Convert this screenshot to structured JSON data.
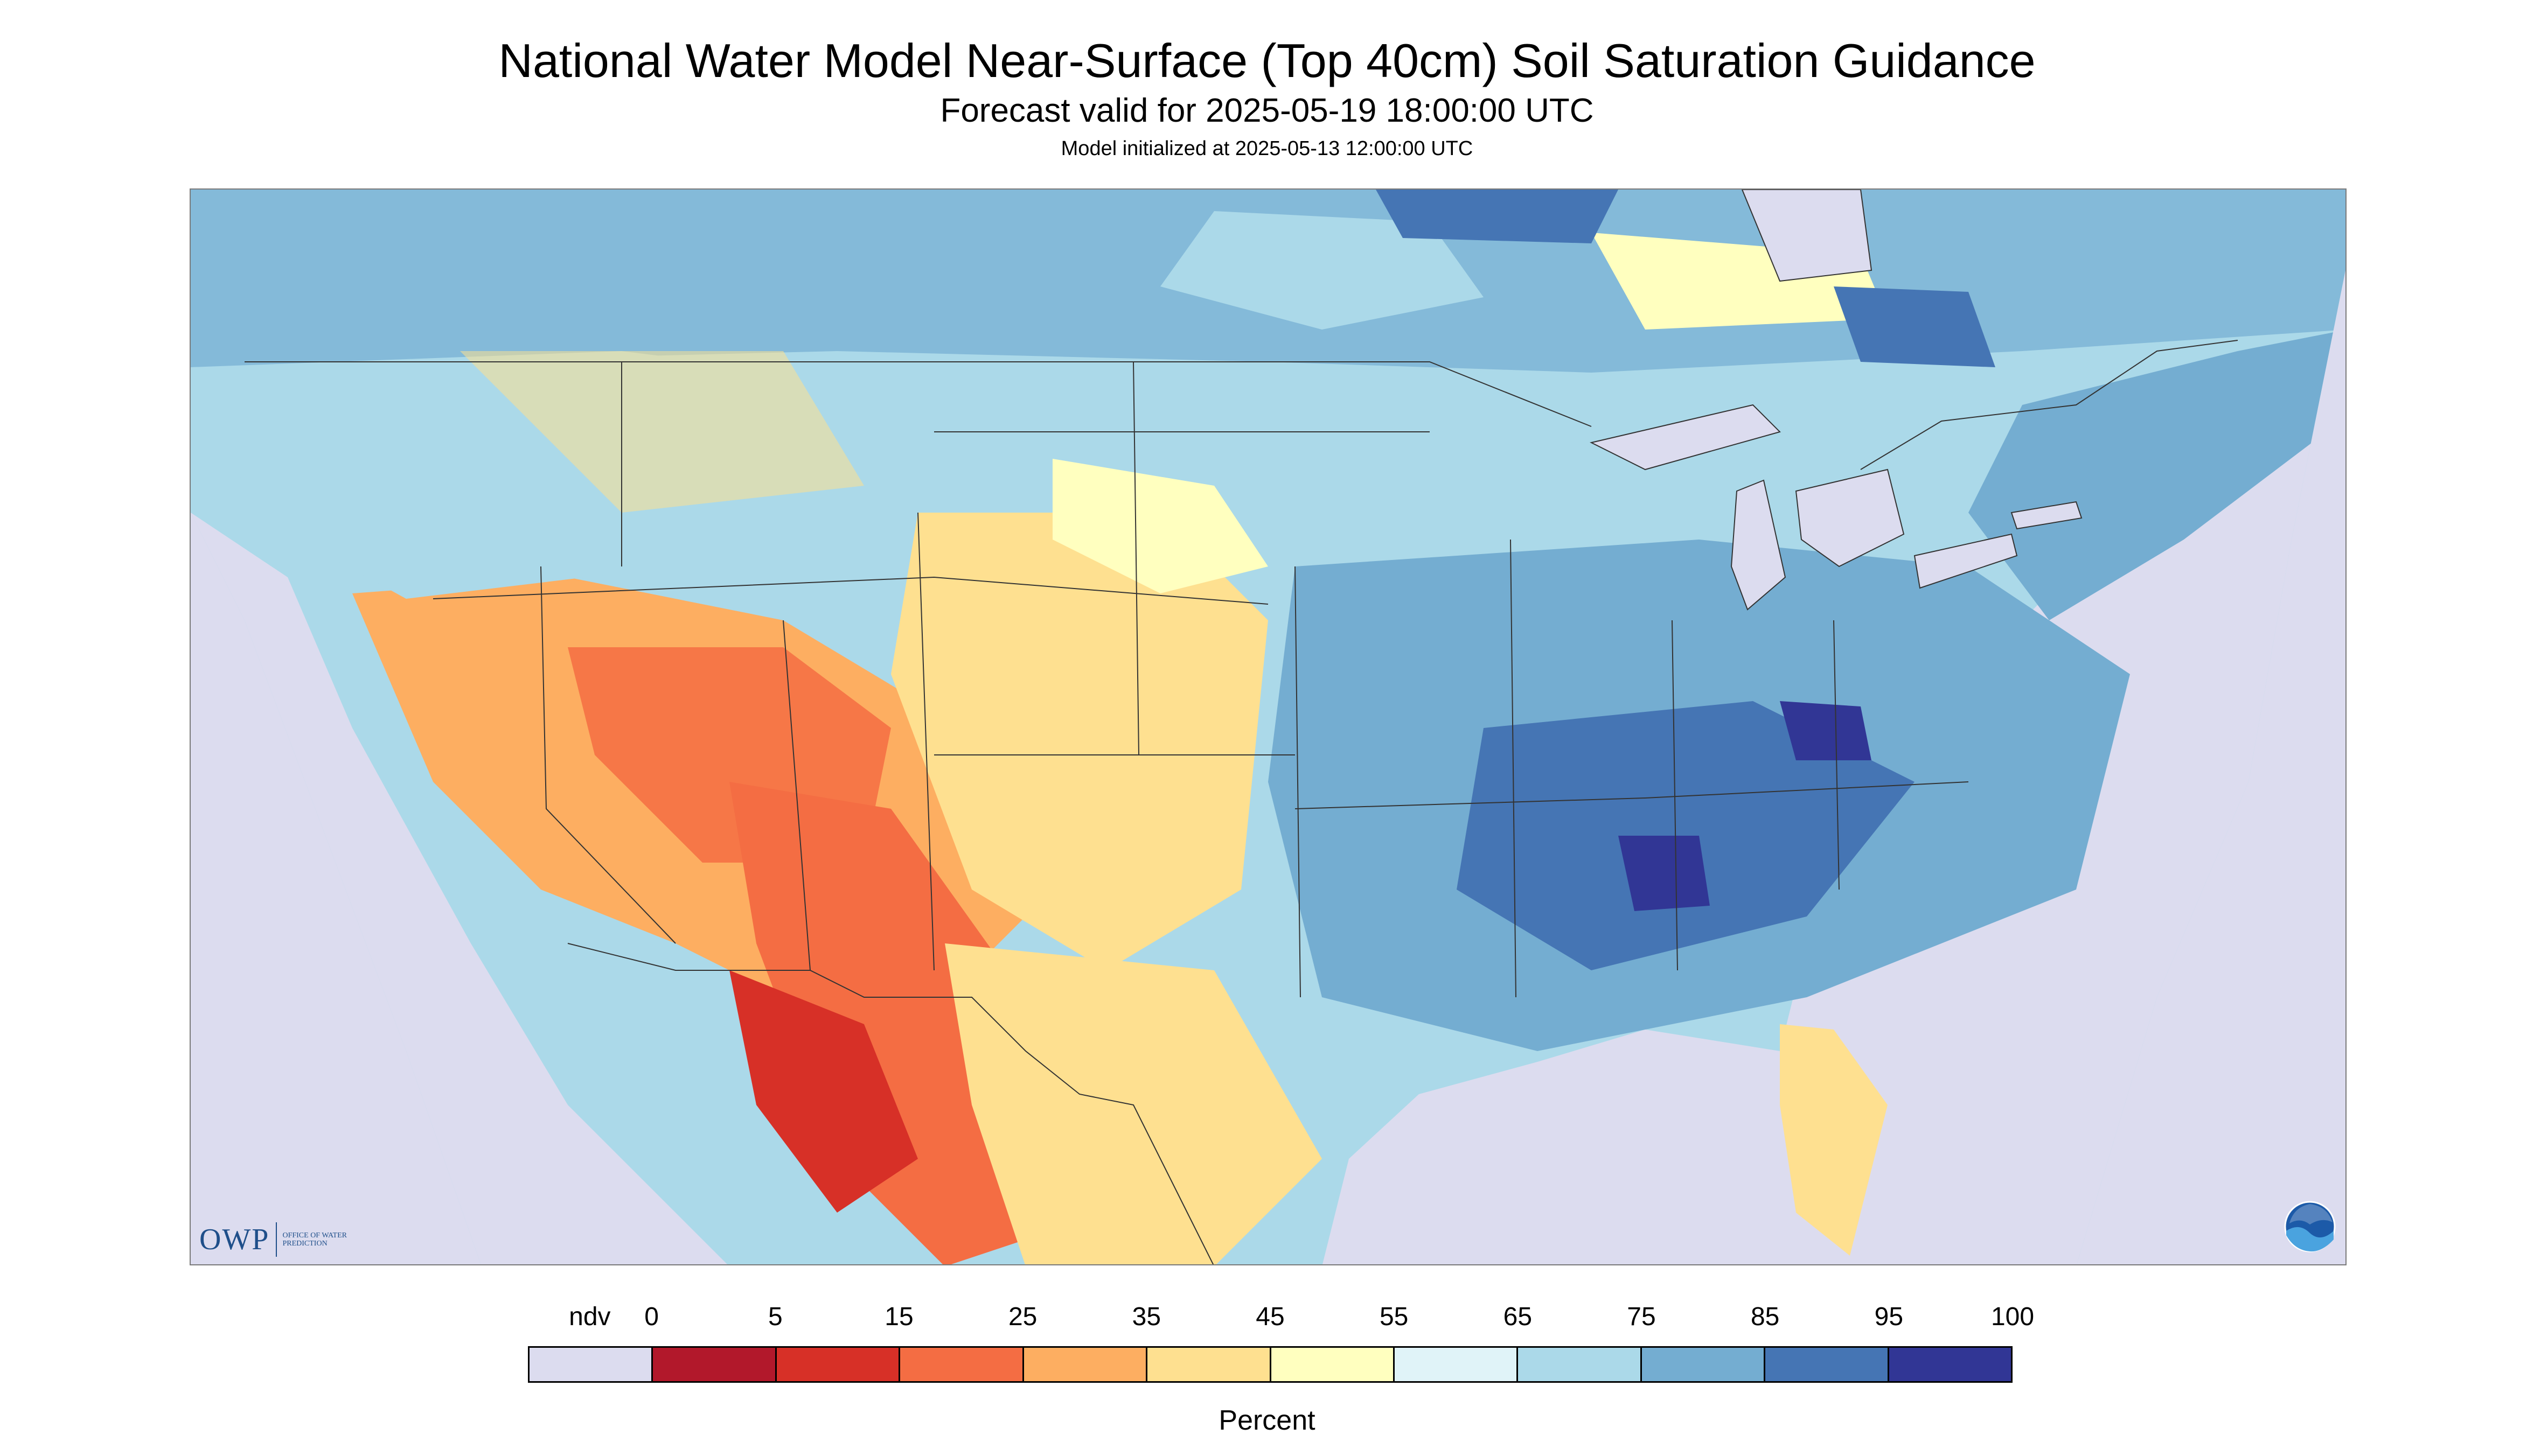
{
  "title": "National Water Model Near-Surface (Top 40cm) Soil Saturation Guidance",
  "subtitle": "Forecast valid for 2025-05-19 18:00:00 UTC",
  "init_line": "Model initialized at 2025-05-13 12:00:00 UTC",
  "logos": {
    "owp_big": "OWP",
    "owp_small": "Office of Water Prediction",
    "noaa": "NOAA"
  },
  "legend": {
    "unit_label": "Percent",
    "ticks": [
      "ndv",
      "0",
      "5",
      "15",
      "25",
      "35",
      "45",
      "55",
      "65",
      "75",
      "85",
      "95",
      "100"
    ],
    "bins": [
      {
        "label": "ndv",
        "color": "#dcdcef"
      },
      {
        "label": "0-5",
        "color": "#b2182b"
      },
      {
        "label": "5-15",
        "color": "#d73027"
      },
      {
        "label": "15-25",
        "color": "#f46d43"
      },
      {
        "label": "25-35",
        "color": "#fdae61"
      },
      {
        "label": "35-45",
        "color": "#fee090"
      },
      {
        "label": "45-55",
        "color": "#ffffbf"
      },
      {
        "label": "55-65",
        "color": "#e0f3f8"
      },
      {
        "label": "65-75",
        "color": "#abd9e9"
      },
      {
        "label": "75-85",
        "color": "#74add1"
      },
      {
        "label": "85-95",
        "color": "#4575b4"
      },
      {
        "label": "95-100",
        "color": "#313695"
      }
    ]
  },
  "map": {
    "background_ndv_color": "#dcdcef",
    "water_color": "#dcdcef",
    "boundary_color": "#333333"
  }
}
